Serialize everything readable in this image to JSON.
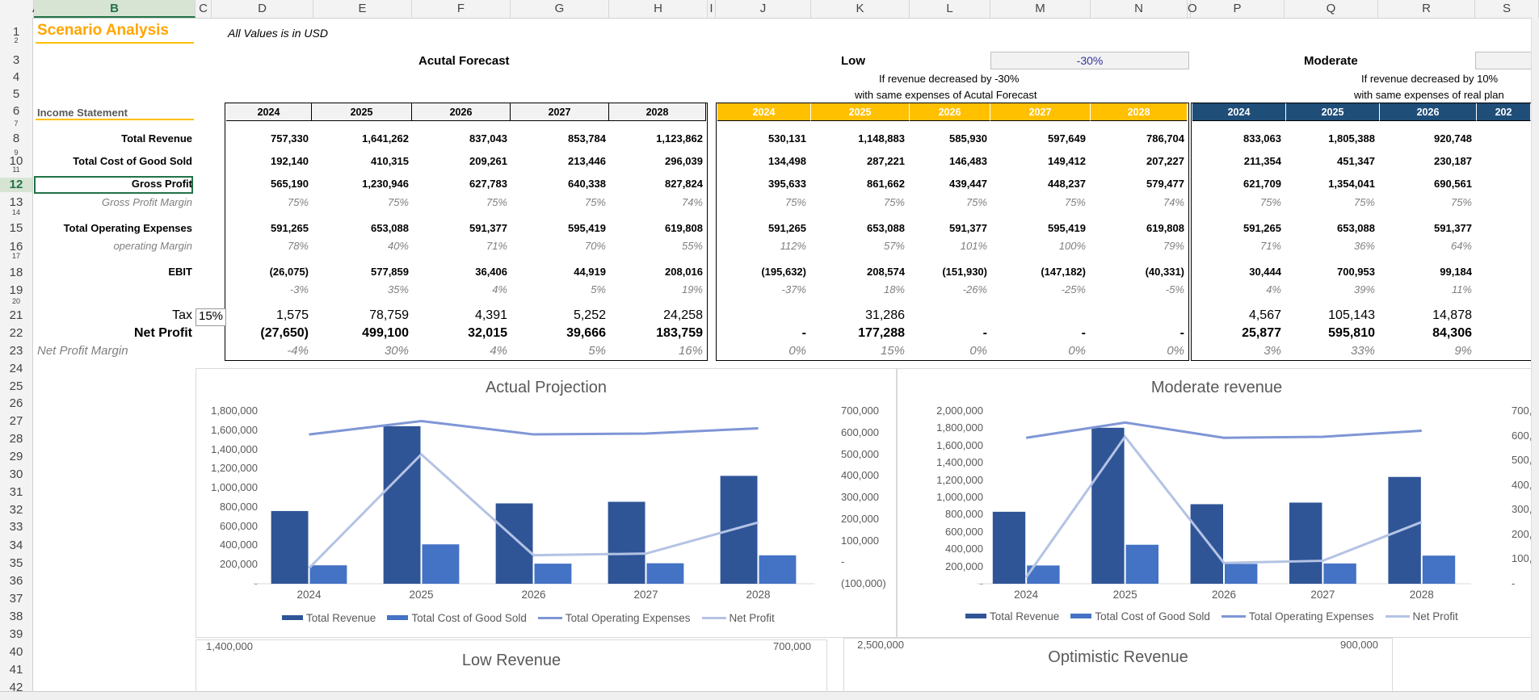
{
  "columns": [
    "A",
    "B",
    "C",
    "D",
    "E",
    "F",
    "G",
    "H",
    "I",
    "J",
    "K",
    "L",
    "M",
    "N",
    "O",
    "P",
    "Q",
    "R",
    "S"
  ],
  "rows": [
    "1",
    "2",
    "3",
    "4",
    "5",
    "6",
    "7",
    "8",
    "9",
    "10",
    "11",
    "12",
    "13",
    "14",
    "15",
    "16",
    "17",
    "18",
    "19",
    "20",
    "21",
    "22",
    "23",
    "24",
    "25",
    "26",
    "27",
    "28",
    "29",
    "30",
    "31",
    "32",
    "33",
    "34",
    "35",
    "36",
    "37",
    "38",
    "39",
    "40",
    "41",
    "42"
  ],
  "sheet": {
    "title": "Scenario Analysis",
    "subtitle": "All Values is in  USD",
    "section": "Income Statement",
    "tax_label": "Tax",
    "tax_rate": "15%",
    "labels": {
      "total_revenue": "Total Revenue",
      "cogs": "Total Cost of Good Sold",
      "gross_profit": "Gross Profit",
      "gross_margin": "Gross Profit Margin",
      "opex": "Total Operating Expenses",
      "op_margin": "operating Margin",
      "ebit": "EBIT",
      "net_profit": "Net Profit",
      "net_margin": "Net Profit Margin"
    }
  },
  "scenarios": {
    "actual": {
      "title": "Acutal Forecast",
      "years": [
        "2024",
        "2025",
        "2026",
        "2027",
        "2028"
      ],
      "total_revenue": [
        "757,330",
        "1,641,262",
        "837,043",
        "853,784",
        "1,123,862"
      ],
      "cogs": [
        "192,140",
        "410,315",
        "209,261",
        "213,446",
        "296,039"
      ],
      "gross_profit": [
        "565,190",
        "1,230,946",
        "627,783",
        "640,338",
        "827,824"
      ],
      "gross_margin": [
        "75%",
        "75%",
        "75%",
        "75%",
        "74%"
      ],
      "opex": [
        "591,265",
        "653,088",
        "591,377",
        "595,419",
        "619,808"
      ],
      "op_margin": [
        "78%",
        "40%",
        "71%",
        "70%",
        "55%"
      ],
      "ebit": [
        "(26,075)",
        "577,859",
        "36,406",
        "44,919",
        "208,016"
      ],
      "ebit_margin": [
        "-3%",
        "35%",
        "4%",
        "5%",
        "19%"
      ],
      "tax": [
        "1,575",
        "78,759",
        "4,391",
        "5,252",
        "24,258"
      ],
      "net_profit": [
        "(27,650)",
        "499,100",
        "32,015",
        "39,666",
        "183,759"
      ],
      "net_margin": [
        "-4%",
        "30%",
        "4%",
        "5%",
        "16%"
      ]
    },
    "low": {
      "title": "Low",
      "pct": "-30%",
      "note1": "If revenue decreased by -30%",
      "note2": "with same expenses of Acutal Forecast",
      "years": [
        "2024",
        "2025",
        "2026",
        "2027",
        "2028"
      ],
      "total_revenue": [
        "530,131",
        "1,148,883",
        "585,930",
        "597,649",
        "786,704"
      ],
      "cogs": [
        "134,498",
        "287,221",
        "146,483",
        "149,412",
        "207,227"
      ],
      "gross_profit": [
        "395,633",
        "861,662",
        "439,447",
        "448,237",
        "579,477"
      ],
      "gross_margin": [
        "75%",
        "75%",
        "75%",
        "75%",
        "74%"
      ],
      "opex": [
        "591,265",
        "653,088",
        "591,377",
        "595,419",
        "619,808"
      ],
      "op_margin": [
        "112%",
        "57%",
        "101%",
        "100%",
        "79%"
      ],
      "ebit": [
        "(195,632)",
        "208,574",
        "(151,930)",
        "(147,182)",
        "(40,331)"
      ],
      "ebit_margin": [
        "-37%",
        "18%",
        "-26%",
        "-25%",
        "-5%"
      ],
      "tax": [
        "",
        "31,286",
        "",
        "",
        ""
      ],
      "net_profit": [
        "-",
        "177,288",
        "-",
        "-",
        "-"
      ],
      "net_margin": [
        "0%",
        "15%",
        "0%",
        "0%",
        "0%"
      ]
    },
    "moderate": {
      "title": "Moderate",
      "note1": "If revenue decreased by 10%",
      "note2": "with same expenses of real plan",
      "years": [
        "2024",
        "2025",
        "2026",
        "202"
      ],
      "total_revenue": [
        "833,063",
        "1,805,388",
        "920,748"
      ],
      "cogs": [
        "211,354",
        "451,347",
        "230,187"
      ],
      "gross_profit": [
        "621,709",
        "1,354,041",
        "690,561"
      ],
      "gross_margin": [
        "75%",
        "75%",
        "75%"
      ],
      "opex": [
        "591,265",
        "653,088",
        "591,377"
      ],
      "op_margin": [
        "71%",
        "36%",
        "64%"
      ],
      "ebit": [
        "30,444",
        "700,953",
        "99,184"
      ],
      "ebit_margin": [
        "4%",
        "39%",
        "11%"
      ],
      "tax": [
        "4,567",
        "105,143",
        "14,878"
      ],
      "net_profit": [
        "25,877",
        "595,810",
        "84,306"
      ],
      "net_margin": [
        "3%",
        "33%",
        "9%"
      ]
    }
  },
  "chart_data": [
    {
      "type": "bar",
      "title": "Actual Projection",
      "categories": [
        "2024",
        "2025",
        "2026",
        "2027",
        "2028"
      ],
      "left_ticks": [
        "1,800,000",
        "1,600,000",
        "1,400,000",
        "1,200,000",
        "1,000,000",
        "800,000",
        "600,000",
        "400,000",
        "200,000",
        "-"
      ],
      "right_ticks": [
        "700,000",
        "600,000",
        "500,000",
        "400,000",
        "300,000",
        "200,000",
        "100,000",
        "-",
        "(100,000)"
      ],
      "ylim": [
        0,
        1800000
      ],
      "y2lim": [
        -100000,
        700000
      ],
      "series": [
        {
          "name": "Total Revenue",
          "axis": "left",
          "values": [
            757330,
            1641262,
            837043,
            853784,
            1123862
          ]
        },
        {
          "name": "Total Cost of Good Sold",
          "axis": "left",
          "values": [
            192140,
            410315,
            209261,
            213446,
            296039
          ]
        },
        {
          "name": "Total Operating Expenses",
          "axis": "right",
          "values": [
            591265,
            653088,
            591377,
            595419,
            619808
          ]
        },
        {
          "name": "Net Profit",
          "axis": "right",
          "values": [
            -27650,
            499100,
            32015,
            39666,
            183759
          ]
        }
      ]
    },
    {
      "type": "bar",
      "title": "Moderate revenue",
      "categories": [
        "2024",
        "2025",
        "2026",
        "2027",
        "2028"
      ],
      "left_ticks": [
        "2,000,000",
        "1,800,000",
        "1,600,000",
        "1,400,000",
        "1,200,000",
        "1,000,000",
        "800,000",
        "600,000",
        "400,000",
        "200,000",
        "-"
      ],
      "right_ticks": [
        "700,",
        "600,",
        "500,",
        "400,",
        "300,",
        "200,",
        "100,",
        "-"
      ],
      "ylim": [
        0,
        2000000
      ],
      "y2lim": [
        0,
        700000
      ],
      "series": [
        {
          "name": "Total Revenue",
          "axis": "left",
          "values": [
            833063,
            1805388,
            920748,
            939162,
            1236248
          ]
        },
        {
          "name": "Total Cost of Good Sold",
          "axis": "left",
          "values": [
            211354,
            451347,
            230187,
            234791,
            325643
          ]
        },
        {
          "name": "Total Operating Expenses",
          "axis": "right",
          "values": [
            591265,
            653088,
            591377,
            595419,
            619808
          ]
        },
        {
          "name": "Net Profit",
          "axis": "right",
          "values": [
            25877,
            595810,
            84306,
            93000,
            250000
          ]
        }
      ]
    },
    {
      "type": "bar",
      "title": "Low Revenue",
      "left_ticks": [
        "1,400,000"
      ],
      "right_ticks": [
        "700,000"
      ]
    },
    {
      "type": "bar",
      "title": "Optimistic Revenue",
      "left_ticks": [
        "2,500,000"
      ],
      "right_ticks": [
        "900,000"
      ]
    }
  ],
  "colors": {
    "revenue": "#2f5597",
    "cogs": "#4472c4",
    "opex": "#7f96d6",
    "net": "#b4c3e4",
    "low_header": "#ffc000",
    "moderate_header": "#1f4e79",
    "title": "#ffa500"
  }
}
